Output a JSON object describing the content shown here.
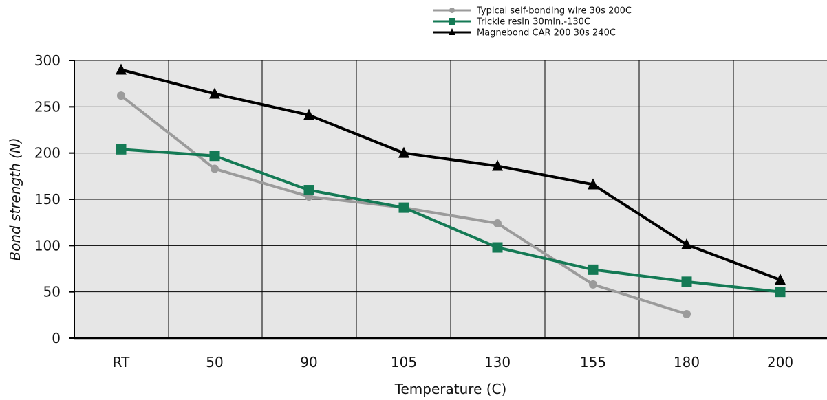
{
  "chart_data": {
    "type": "line",
    "xlabel": "Temperature (C)",
    "ylabel": "Bond strength (N)",
    "categories": [
      "RT",
      "50",
      "90",
      "105",
      "130",
      "155",
      "180",
      "200"
    ],
    "ylim": [
      0,
      300
    ],
    "yticks": [
      0,
      50,
      100,
      150,
      200,
      250,
      300
    ],
    "grid": true,
    "legend_position": "top",
    "series": [
      {
        "name": "Typical self-bonding wire 30s 200C",
        "color": "#9b9b9b",
        "marker": "circle",
        "values": [
          262,
          183,
          153,
          141,
          124,
          58,
          26,
          null
        ]
      },
      {
        "name": "Trickle resin 30min.-130C",
        "color": "#147a55",
        "marker": "square",
        "values": [
          204,
          197,
          160,
          141,
          98,
          74,
          61,
          50
        ]
      },
      {
        "name": "Magnebond CAR 200 30s 240C",
        "color": "#000000",
        "marker": "triangle",
        "values": [
          290,
          264,
          241,
          200,
          186,
          166,
          101,
          63
        ]
      }
    ]
  }
}
